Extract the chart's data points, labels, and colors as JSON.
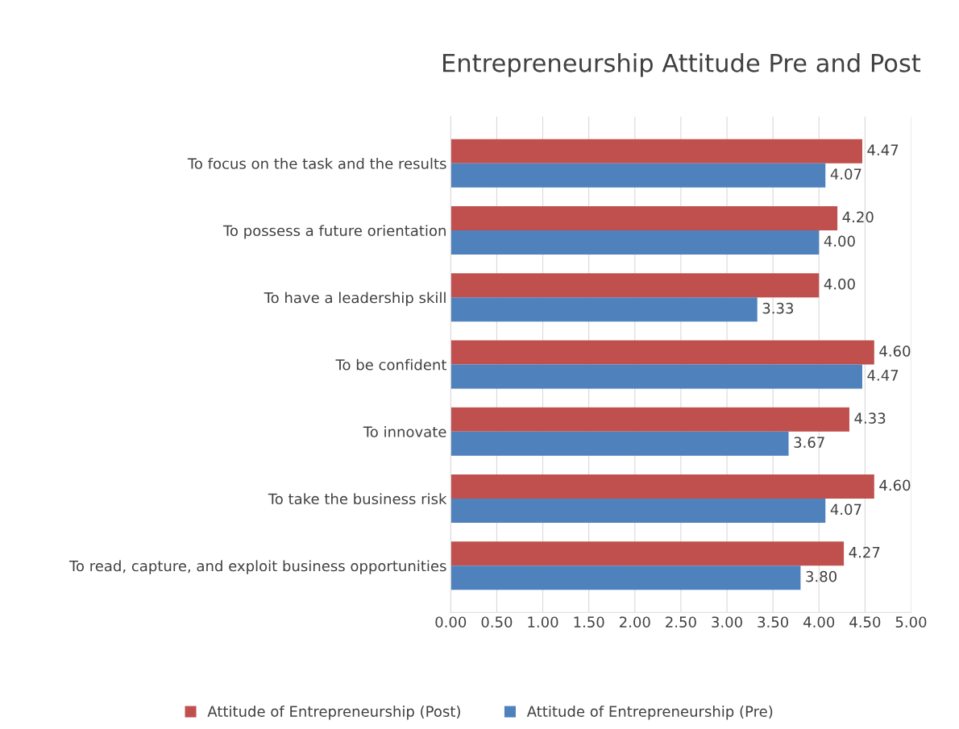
{
  "chart_data": {
    "type": "bar",
    "orientation": "horizontal",
    "title": "Entrepreneurship Attitude Pre and Post",
    "categories": [
      "To focus on the task and the results",
      "To possess a future orientation",
      "To have a leadership skill",
      "To be confident",
      "To innovate",
      "To take the business risk",
      "To read, capture, and exploit business opportunities"
    ],
    "series": [
      {
        "name": "Attitude of Entrepreneurship (Post)",
        "color": "#c0504d",
        "values": [
          4.47,
          4.2,
          4.0,
          4.6,
          4.33,
          4.6,
          4.27
        ],
        "value_labels": [
          "4.47",
          "4.20",
          "4.00",
          "4.60",
          "4.33",
          "4.60",
          "4.27"
        ]
      },
      {
        "name": "Attitude of Entrepreneurship (Pre)",
        "color": "#4f81bd",
        "values": [
          4.07,
          4.0,
          3.33,
          4.47,
          3.67,
          4.07,
          3.8
        ],
        "value_labels": [
          "4.07",
          "4.00",
          "3.33",
          "4.47",
          "3.67",
          "4.07",
          "3.80"
        ]
      }
    ],
    "xlim": [
      0,
      5
    ],
    "xticks": [
      {
        "value": 0,
        "label": "0.00"
      },
      {
        "value": 0.5,
        "label": "0.50"
      },
      {
        "value": 1,
        "label": "1.00"
      },
      {
        "value": 1.5,
        "label": "1.50"
      },
      {
        "value": 2,
        "label": "2.00"
      },
      {
        "value": 2.5,
        "label": "2.50"
      },
      {
        "value": 3,
        "label": "3.00"
      },
      {
        "value": 3.5,
        "label": "3.50"
      },
      {
        "value": 4,
        "label": "4.00"
      },
      {
        "value": 4.5,
        "label": "4.50"
      },
      {
        "value": 5,
        "label": "5.00"
      }
    ],
    "grid": "x",
    "legend": "bottom"
  }
}
